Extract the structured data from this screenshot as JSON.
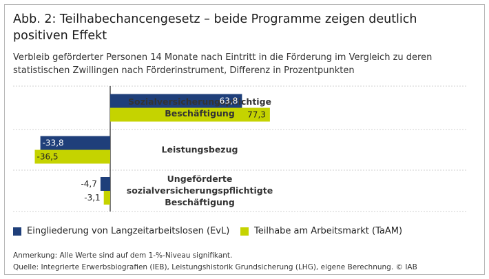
{
  "figure": {
    "title": "Abb. 2: Teilhabechancengesetz – beide Programme zeigen deutlich positiven Effekt",
    "subtitle": "Verbleib geförderter Personen 14 Monate nach Eintritt in die Förderung im Vergleich zu deren statistischen Zwillingen nach Förderinstrument, Differenz in Prozentpunkten",
    "note": "Anmerkung: Alle Werte sind auf dem 1-%-Niveau signifikant.",
    "source": "Quelle: Integrierte Erwerbsbiografien (IEB), Leistungshistorik Grundsicherung (LHG), eigene Berechnung. © IAB"
  },
  "chart_data": {
    "type": "bar",
    "orientation": "horizontal",
    "categories": [
      [
        "Sozialversicherungspflichtige",
        "Beschäftigung"
      ],
      [
        "Leistungsbezug"
      ],
      [
        "Ungeförderte",
        "sozialversicherungspflichtigte",
        "Beschäftigung"
      ]
    ],
    "series": [
      {
        "name": "Eingliederung von Langzeitarbeitslosen (EvL)",
        "color": "#1f3f7a",
        "values": [
          63.8,
          -33.8,
          -4.7
        ],
        "labels": [
          "63,8",
          "-33,8",
          "-4,7"
        ]
      },
      {
        "name": "Teilhabe am Arbeitsmarkt (TaAM)",
        "color": "#c5d300",
        "values": [
          77.3,
          -36.5,
          -3.1
        ],
        "labels": [
          "77,3",
          "-36,5",
          "-3,1"
        ]
      }
    ],
    "xlim": [
      -40,
      100
    ],
    "grid": "horizontal separators only",
    "legend_position": "bottom-left"
  }
}
